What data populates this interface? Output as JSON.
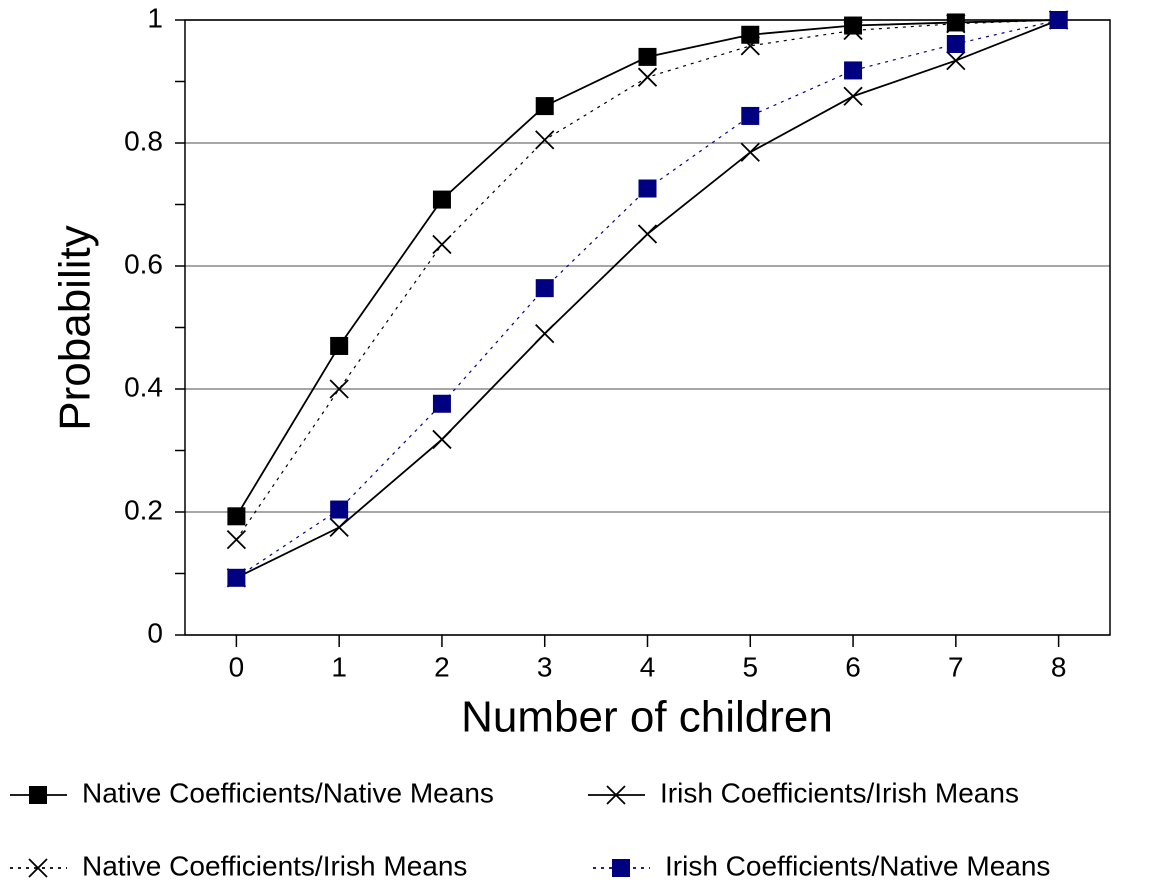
{
  "chart_data": {
    "type": "line",
    "xlabel": "Number of children",
    "ylabel": "Probability",
    "x": [
      0,
      1,
      2,
      3,
      4,
      5,
      6,
      7,
      8
    ],
    "xlim": [
      -0.5,
      8.5
    ],
    "xticks": [
      0,
      1,
      2,
      3,
      4,
      5,
      6,
      7,
      8
    ],
    "ylim": [
      0,
      1
    ],
    "yticks": [
      0,
      0.2,
      0.4,
      0.6,
      0.8,
      1
    ],
    "yminorticks": [
      0.1,
      0.3,
      0.5,
      0.7,
      0.9
    ],
    "grid": true,
    "legend": "bottom",
    "series": [
      {
        "name": "Native Coefficients/Native Means",
        "color": "#000000",
        "line": "solid",
        "marker": "square",
        "values": [
          0.193,
          0.47,
          0.708,
          0.86,
          0.94,
          0.976,
          0.991,
          0.996,
          1.0
        ]
      },
      {
        "name": "Irish Coefficients/Irish Means",
        "color": "#000000",
        "line": "solid",
        "marker": "x",
        "values": [
          0.093,
          0.175,
          0.318,
          0.49,
          0.652,
          0.785,
          0.876,
          0.934,
          1.0
        ]
      },
      {
        "name": "Native Coefficients/Irish Means",
        "color": "#000000",
        "line": "dotted",
        "marker": "x",
        "values": [
          0.155,
          0.4,
          0.635,
          0.805,
          0.907,
          0.958,
          0.983,
          0.994,
          1.0
        ]
      },
      {
        "name": "Irish Coefficients/Native Means",
        "color": "#000080",
        "line": "dotted",
        "marker": "square",
        "values": [
          0.093,
          0.204,
          0.376,
          0.564,
          0.726,
          0.844,
          0.918,
          0.961,
          1.0
        ]
      }
    ]
  }
}
